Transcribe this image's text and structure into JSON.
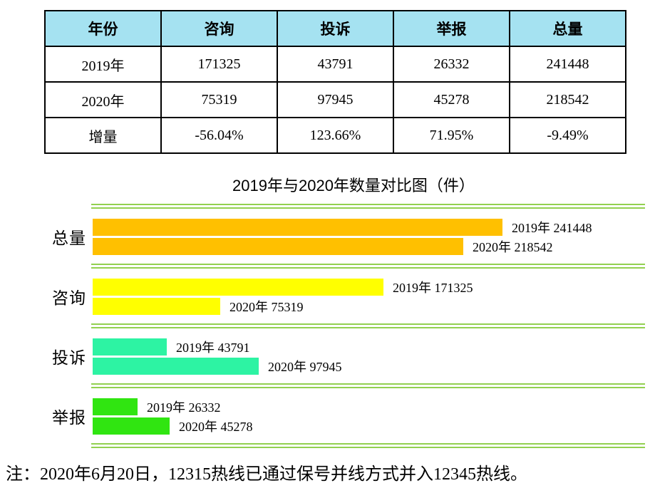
{
  "table": {
    "header_bg": "#A5E2F1",
    "headers": [
      "年份",
      "咨询",
      "投诉",
      "举报",
      "总量"
    ],
    "rows": [
      {
        "label": "2019年",
        "cells": [
          "171325",
          "43791",
          "26332",
          "241448"
        ]
      },
      {
        "label": "2020年",
        "cells": [
          "75319",
          "97945",
          "45278",
          "218542"
        ]
      },
      {
        "label": "增量",
        "cells": [
          "-56.04%",
          "123.66%",
          "71.95%",
          "-9.49%"
        ]
      }
    ]
  },
  "chart": {
    "title": "2019年与2020年数量对比图（件）",
    "separator_color": "#92D050",
    "max_value": 241448,
    "groups": [
      {
        "category": "总量",
        "color": "#FFC000",
        "bars": [
          {
            "label": "2019年 241448",
            "value": 241448
          },
          {
            "label": "2020年 218542",
            "value": 218542
          }
        ]
      },
      {
        "category": "咨询",
        "color": "#FFFF00",
        "bars": [
          {
            "label": "2019年 171325",
            "value": 171325
          },
          {
            "label": "2020年 75319",
            "value": 75319
          }
        ]
      },
      {
        "category": "投诉",
        "color": "#2DF3A3",
        "bars": [
          {
            "label": "2019年 43791",
            "value": 43791
          },
          {
            "label": "2020年 97945",
            "value": 97945
          }
        ]
      },
      {
        "category": "举报",
        "color": "#30E511",
        "bars": [
          {
            "label": "2019年 26332",
            "value": 26332
          },
          {
            "label": "2020年 45278",
            "value": 45278
          }
        ]
      }
    ]
  },
  "note": "注：2020年6月20日，12315热线已通过保号并线方式并入12345热线。",
  "chart_data": {
    "type": "bar",
    "orientation": "horizontal",
    "title": "2019年与2020年数量对比图（件）",
    "categories": [
      "总量",
      "咨询",
      "投诉",
      "举报"
    ],
    "series": [
      {
        "name": "2019年",
        "values": [
          241448,
          171325,
          43791,
          26332
        ]
      },
      {
        "name": "2020年",
        "values": [
          218542,
          75319,
          97945,
          45278
        ]
      }
    ],
    "bar_colors": {
      "总量": "#FFC000",
      "咨询": "#FFFF00",
      "投诉": "#2DF3A3",
      "举报": "#30E511"
    },
    "xlim": [
      0,
      241448
    ],
    "grid": false,
    "legend_position": "inline-data-labels",
    "data_labels": true
  }
}
